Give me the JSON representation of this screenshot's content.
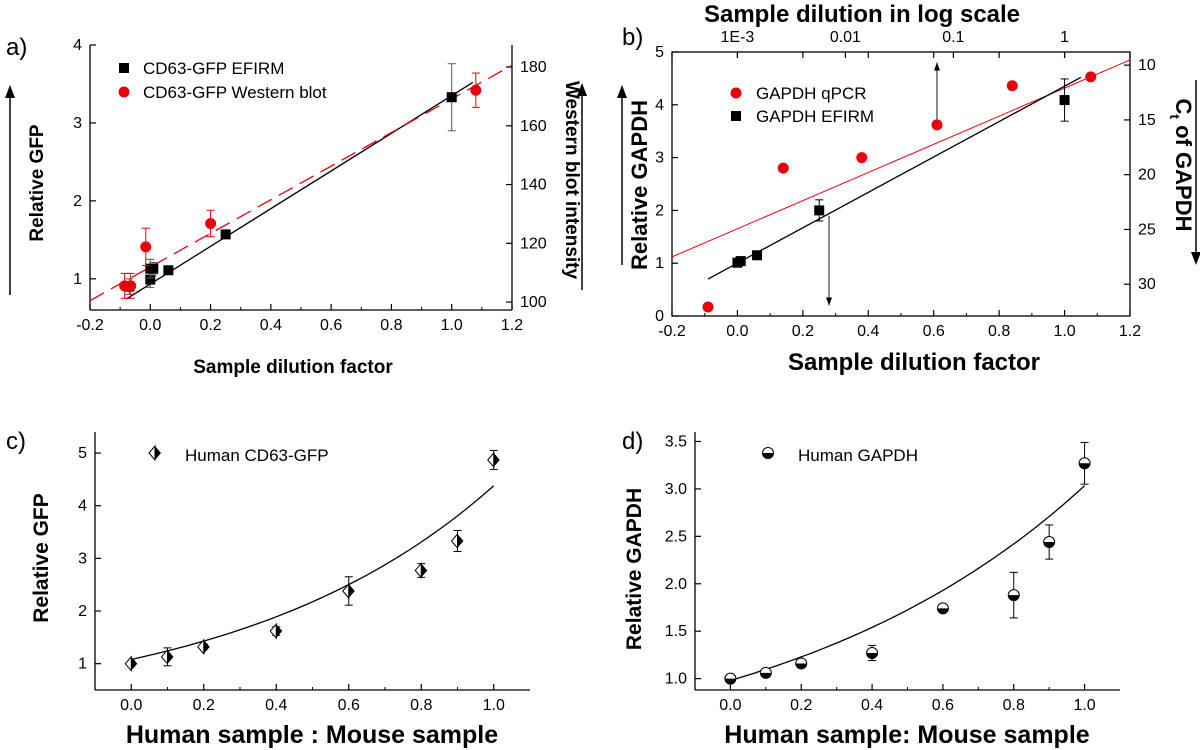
{
  "chart_data": [
    {
      "id": "a",
      "panel_label": "a)",
      "type": "scatter",
      "xlabel": "Sample dilution factor",
      "ylabel": "Relative GFP",
      "y2label": "Western blot intensity",
      "xlim": [
        -0.2,
        1.2
      ],
      "ylim": [
        0.6,
        4.0
      ],
      "y2lim": [
        97.3,
        187.5
      ],
      "xticks": [
        "-0.2",
        "0.0",
        "0.2",
        "0.4",
        "0.6",
        "0.8",
        "1.0",
        "1.2"
      ],
      "yticks": [
        "1",
        "2",
        "3",
        "4"
      ],
      "y2ticks": [
        "100",
        "120",
        "140",
        "160",
        "180"
      ],
      "legend": [
        "CD63-GFP EFIRM",
        "CD63-GFP Western blot"
      ],
      "series": [
        {
          "name": "CD63-GFP EFIRM",
          "color": "#000000",
          "marker": "square",
          "axis": "left",
          "x": [
            -0.07,
            0.0,
            0.0,
            0.01,
            0.06,
            0.25,
            1.0
          ],
          "y": [
            0.9,
            0.99,
            1.13,
            1.13,
            1.11,
            1.57,
            3.33
          ],
          "err": [
            0.1,
            0.1,
            0.12,
            0.08,
            0.05,
            0.05,
            0.43
          ]
        },
        {
          "name": "CD63-GFP Western blot",
          "color": "#e8000b",
          "marker": "circle",
          "axis": "left",
          "x": [
            -0.085,
            -0.065,
            -0.015,
            0.2,
            1.08
          ],
          "y": [
            0.91,
            0.91,
            1.41,
            1.71,
            3.42
          ],
          "err": [
            0.16,
            0.16,
            0.24,
            0.17,
            0.22
          ]
        }
      ],
      "fits": [
        {
          "color": "#000000",
          "dash": "none",
          "x": [
            -0.08,
            1.07
          ],
          "y": [
            0.74,
            3.52
          ]
        },
        {
          "color": "#e8000b",
          "dash": "16 8",
          "x": [
            -0.2,
            1.2
          ],
          "y": [
            0.72,
            3.74
          ]
        }
      ]
    },
    {
      "id": "b",
      "panel_label": "b)",
      "type": "scatter",
      "xlabel": "Sample dilution factor",
      "ylabel": "Relative GAPDH",
      "y2label": "C",
      "y2label_sub": "t",
      "y2label_tail": " of GAPDH",
      "toplabel": "Sample dilution in log scale",
      "xlim": [
        -0.2,
        1.2
      ],
      "ylim": [
        0,
        5
      ],
      "y2lim": [
        32.9,
        8.8
      ],
      "xticks": [
        "-0.2",
        "0.0",
        "0.2",
        "0.4",
        "0.6",
        "0.8",
        "1.0",
        "1.2"
      ],
      "yticks": [
        "0",
        "1",
        "2",
        "3",
        "4",
        "5"
      ],
      "y2ticks": [
        "10",
        "15",
        "20",
        "25",
        "30"
      ],
      "topticks": [
        "1E-3",
        "0.01",
        "0.1",
        "1"
      ],
      "legend": [
        "GAPDH qPCR",
        "GAPDH EFIRM"
      ],
      "series": [
        {
          "name": "GAPDH qPCR",
          "color": "#e8000b",
          "marker": "circle",
          "axis": "left",
          "x": [
            -0.09,
            0.14,
            0.38,
            0.61,
            0.84,
            1.08
          ],
          "y": [
            0.17,
            2.8,
            3.0,
            3.62,
            4.36,
            4.53
          ],
          "err": []
        },
        {
          "name": "GAPDH EFIRM",
          "color": "#000000",
          "marker": "square",
          "axis": "left",
          "x": [
            0.0,
            0.01,
            0.06,
            0.25,
            1.0
          ],
          "y": [
            1.01,
            1.04,
            1.15,
            2.0,
            4.09
          ],
          "err": [
            0.05,
            0.04,
            0.03,
            0.2,
            0.4
          ]
        }
      ],
      "fits": [
        {
          "color": "#e8000b",
          "dash": "none",
          "width": 1,
          "x": [
            -0.2,
            1.2
          ],
          "y": [
            1.12,
            4.85
          ]
        },
        {
          "color": "#000000",
          "dash": "none",
          "width": 1.3,
          "x": [
            -0.09,
            1.05
          ],
          "y": [
            0.7,
            4.52
          ]
        }
      ],
      "arrows": [
        {
          "x": 0.61,
          "from": 3.7,
          "to": 4.8
        },
        {
          "x": 0.28,
          "from": 1.9,
          "to": 0.2
        }
      ]
    },
    {
      "id": "c",
      "panel_label": "c)",
      "type": "scatter",
      "xlabel": "Human sample : Mouse sample",
      "ylabel": "Relative GFP",
      "xlim": [
        -0.1,
        1.1
      ],
      "ylim": [
        0.5,
        5.4
      ],
      "xticks": [
        "0.0",
        "0.2",
        "0.4",
        "0.6",
        "0.8",
        "1.0"
      ],
      "yticks": [
        "1",
        "2",
        "3",
        "4",
        "5"
      ],
      "legend": [
        "Human CD63-GFP"
      ],
      "series": [
        {
          "name": "Human CD63-GFP",
          "color": "#000000",
          "marker": "diamond-half",
          "x": [
            0.0,
            0.1,
            0.2,
            0.4,
            0.6,
            0.8,
            0.9,
            1.0
          ],
          "y": [
            1.0,
            1.13,
            1.32,
            1.62,
            2.38,
            2.77,
            3.33,
            4.87
          ],
          "err": [
            0.05,
            0.17,
            0.05,
            0.08,
            0.27,
            0.13,
            0.2,
            0.18
          ]
        }
      ],
      "fit": {
        "type": "exp",
        "a": 1.08,
        "b": 1.4,
        "x": [
          0.0,
          1.0
        ]
      }
    },
    {
      "id": "d",
      "panel_label": "d)",
      "type": "scatter",
      "xlabel": "Human sample: Mouse sample",
      "ylabel": "Relative GAPDH",
      "xlim": [
        -0.1,
        1.1
      ],
      "ylim": [
        0.88,
        3.6
      ],
      "xticks": [
        "0.0",
        "0.2",
        "0.4",
        "0.6",
        "0.8",
        "1.0"
      ],
      "yticks": [
        "1.0",
        "1.5",
        "2.0",
        "2.5",
        "3.0",
        "3.5"
      ],
      "legend": [
        "Human GAPDH"
      ],
      "series": [
        {
          "name": "Human GAPDH",
          "color": "#000000",
          "marker": "circle-half",
          "x": [
            0.0,
            0.1,
            0.2,
            0.4,
            0.6,
            0.8,
            0.9,
            1.0
          ],
          "y": [
            1.0,
            1.06,
            1.16,
            1.27,
            1.74,
            1.88,
            2.44,
            3.27
          ],
          "err": [
            0.02,
            0.02,
            0.03,
            0.08,
            0.03,
            0.24,
            0.18,
            0.22
          ]
        }
      ],
      "fit": {
        "type": "exp",
        "a": 0.98,
        "b": 1.13,
        "x": [
          0.0,
          1.0
        ]
      }
    }
  ]
}
